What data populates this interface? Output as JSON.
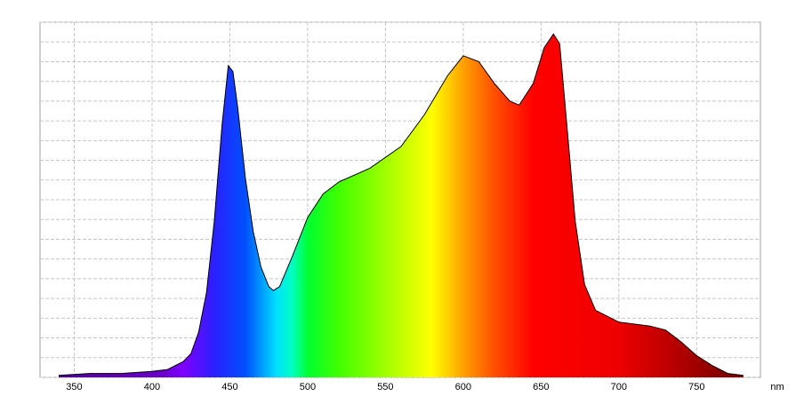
{
  "chart_data": {
    "type": "area",
    "x_label": "nm",
    "x": [
      340,
      360,
      380,
      400,
      410,
      420,
      425,
      430,
      435,
      440,
      445,
      449,
      452,
      455,
      460,
      465,
      470,
      475,
      478,
      482,
      490,
      500,
      510,
      520,
      540,
      560,
      575,
      590,
      600,
      610,
      620,
      630,
      636,
      645,
      652,
      658,
      662,
      667,
      672,
      678,
      685,
      700,
      720,
      730,
      740,
      750,
      760,
      770,
      780
    ],
    "values": [
      0.1,
      0.2,
      0.2,
      0.3,
      0.4,
      0.8,
      1.2,
      2.3,
      4.3,
      7.9,
      12.8,
      15.8,
      15.5,
      13.7,
      10.1,
      7.4,
      5.6,
      4.6,
      4.4,
      4.6,
      6.1,
      8.1,
      9.3,
      9.9,
      10.6,
      11.7,
      13.3,
      15.3,
      16.3,
      16.0,
      14.9,
      14.0,
      13.8,
      14.9,
      16.7,
      17.4,
      16.9,
      12.4,
      7.9,
      4.7,
      3.4,
      2.8,
      2.6,
      2.4,
      1.8,
      1.1,
      0.6,
      0.2,
      0.1
    ],
    "xlim": [
      328,
      791
    ],
    "xticks": [
      350,
      400,
      450,
      500,
      550,
      600,
      650,
      700,
      750
    ],
    "ylim": [
      0,
      18
    ],
    "yticks": [
      0,
      1,
      2,
      3,
      4,
      5,
      6,
      7,
      8,
      9,
      10,
      11,
      12,
      13,
      14,
      15,
      16,
      17,
      18
    ],
    "grid": true,
    "line_color": "#000000"
  }
}
